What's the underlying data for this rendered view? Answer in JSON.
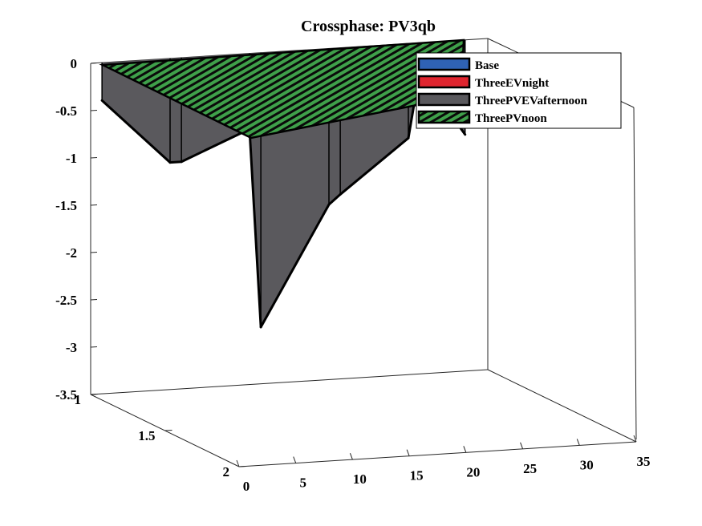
{
  "chart_data": {
    "type": "area",
    "title": "Crossphase: PV3qb",
    "xlabel": "",
    "ylabel": "",
    "zlabel": "",
    "axes": {
      "x": {
        "ticks": [
          0,
          5,
          10,
          15,
          20,
          25,
          30,
          35
        ],
        "range": [
          0,
          35
        ]
      },
      "y": {
        "ticks": [
          1,
          1.5,
          2
        ],
        "range": [
          1,
          2
        ]
      },
      "z": {
        "ticks": [
          0,
          -0.5,
          -1,
          -1.5,
          -2,
          -2.5,
          -3,
          -3.5
        ],
        "range": [
          -3.5,
          0
        ]
      }
    },
    "grid": false,
    "legend_position": "top-right",
    "x": [
      1,
      7,
      8,
      14,
      15,
      21,
      22,
      28,
      29,
      33
    ],
    "series": [
      {
        "name": "Base",
        "color": "#2f62b5",
        "hatched": false,
        "y_position": 1,
        "values": [
          0,
          0,
          0,
          0,
          0,
          0,
          0,
          0,
          0,
          0
        ]
      },
      {
        "name": "ThreeEVnight",
        "color": "#e0252f",
        "hatched": false,
        "y_position": 1,
        "values": [
          0,
          0,
          0,
          0,
          0,
          0,
          0,
          0,
          0,
          0
        ]
      },
      {
        "name": "ThreePVEVafternoon",
        "color": "#5a595d",
        "hatched": false,
        "y_position": 1,
        "values": [
          -0.4,
          -1.1,
          -1.1,
          -0.8,
          -2.9,
          -1.65,
          -1.55,
          -1.0,
          -0.3,
          -1.0
        ]
      },
      {
        "name": "ThreePVnoon",
        "color": "#3fa04a",
        "hatched": true,
        "y_position": 1,
        "values": [
          0,
          0,
          0,
          0,
          0,
          0,
          0,
          0,
          0,
          0
        ]
      }
    ]
  }
}
